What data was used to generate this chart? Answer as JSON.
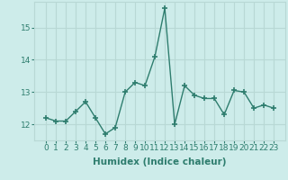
{
  "x": [
    0,
    1,
    2,
    3,
    4,
    5,
    6,
    7,
    8,
    9,
    10,
    11,
    12,
    13,
    14,
    15,
    16,
    17,
    18,
    19,
    20,
    21,
    22,
    23
  ],
  "y": [
    12.2,
    12.1,
    12.1,
    12.4,
    12.7,
    12.2,
    11.7,
    11.9,
    13.0,
    13.3,
    13.2,
    14.1,
    15.6,
    12.0,
    13.2,
    12.9,
    12.8,
    12.8,
    12.3,
    13.05,
    13.0,
    12.5,
    12.6,
    12.5
  ],
  "line_color": "#2e7d6e",
  "marker": "+",
  "markersize": 4,
  "linewidth": 1.0,
  "bg_color": "#cdecea",
  "grid_color": "#b8d8d5",
  "xlabel": "Humidex (Indice chaleur)",
  "xlabel_fontsize": 7.5,
  "tick_fontsize": 6.5,
  "ylim": [
    11.5,
    15.8
  ],
  "yticks": [
    12,
    13,
    14,
    15
  ],
  "xticks": [
    0,
    1,
    2,
    3,
    4,
    5,
    6,
    7,
    8,
    9,
    10,
    11,
    12,
    13,
    14,
    15,
    16,
    17,
    18,
    19,
    20,
    21,
    22,
    23
  ]
}
